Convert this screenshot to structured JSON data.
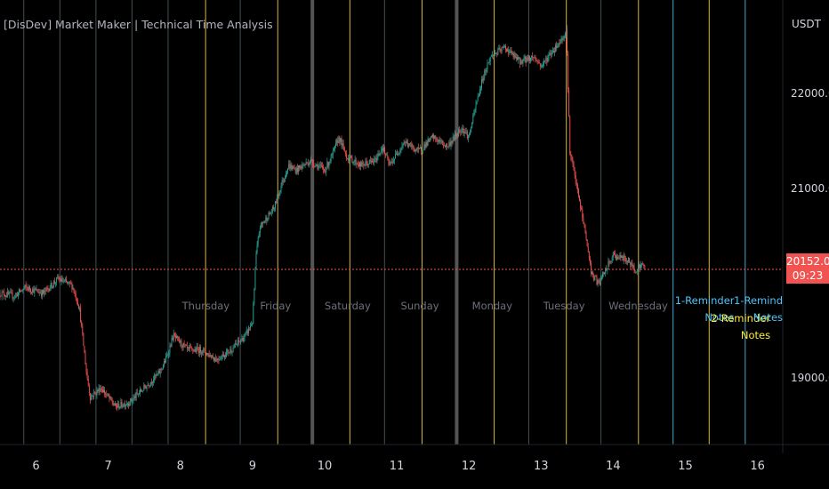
{
  "title": "[DisDev] Market Maker | Technical Time Analysis",
  "unit": "USDT",
  "colors": {
    "background": "#000000",
    "up": "#26a69a",
    "down": "#ef5350",
    "day_line": "#ffd54f",
    "gray_line": "#78909c",
    "thick_line": "#5d5d5d",
    "reminder1": "#4fc3f7",
    "reminder2": "#ffeb3b",
    "price_line": "#f05350"
  },
  "chart_data": {
    "type": "candlestick",
    "x_ticks": [
      "6",
      "7",
      "8",
      "9",
      "10",
      "11",
      "12",
      "13",
      "14",
      "15",
      "16"
    ],
    "y_ticks": [
      "22000.0",
      "21000.0",
      "19000.0"
    ],
    "y_tick_values": [
      22000,
      21000,
      19000
    ],
    "ylim": [
      18300,
      23000
    ],
    "xlim": [
      5.5,
      16.35
    ],
    "last_price_label": "20152.0",
    "last_price": 20152,
    "countdown": "09:23",
    "price_path": [
      [
        5.5,
        19900
      ],
      [
        5.7,
        19870
      ],
      [
        5.85,
        19960
      ],
      [
        6.1,
        19900
      ],
      [
        6.3,
        20050
      ],
      [
        6.5,
        19980
      ],
      [
        6.6,
        19750
      ],
      [
        6.7,
        19050
      ],
      [
        6.75,
        18800
      ],
      [
        6.9,
        18900
      ],
      [
        7.1,
        18700
      ],
      [
        7.3,
        18750
      ],
      [
        7.5,
        18900
      ],
      [
        7.7,
        19050
      ],
      [
        7.8,
        19200
      ],
      [
        7.9,
        19450
      ],
      [
        8.1,
        19300
      ],
      [
        8.3,
        19300
      ],
      [
        8.5,
        19200
      ],
      [
        8.7,
        19300
      ],
      [
        8.9,
        19450
      ],
      [
        9.0,
        19600
      ],
      [
        9.05,
        20300
      ],
      [
        9.1,
        20600
      ],
      [
        9.2,
        20700
      ],
      [
        9.3,
        20800
      ],
      [
        9.4,
        21050
      ],
      [
        9.5,
        21250
      ],
      [
        9.6,
        21200
      ],
      [
        9.8,
        21300
      ],
      [
        10.0,
        21200
      ],
      [
        10.1,
        21350
      ],
      [
        10.2,
        21550
      ],
      [
        10.3,
        21350
      ],
      [
        10.5,
        21250
      ],
      [
        10.7,
        21300
      ],
      [
        10.8,
        21450
      ],
      [
        10.9,
        21250
      ],
      [
        11.1,
        21500
      ],
      [
        11.3,
        21400
      ],
      [
        11.5,
        21550
      ],
      [
        11.7,
        21450
      ],
      [
        11.9,
        21650
      ],
      [
        12.0,
        21550
      ],
      [
        12.1,
        21900
      ],
      [
        12.2,
        22200
      ],
      [
        12.3,
        22400
      ],
      [
        12.5,
        22500
      ],
      [
        12.7,
        22350
      ],
      [
        12.9,
        22400
      ],
      [
        13.0,
        22300
      ],
      [
        13.2,
        22500
      ],
      [
        13.3,
        22600
      ],
      [
        13.35,
        22700
      ],
      [
        13.4,
        21400
      ],
      [
        13.5,
        21000
      ],
      [
        13.6,
        20600
      ],
      [
        13.7,
        20100
      ],
      [
        13.8,
        20000
      ],
      [
        13.9,
        20150
      ],
      [
        14.0,
        20300
      ],
      [
        14.2,
        20250
      ],
      [
        14.3,
        20150
      ],
      [
        14.4,
        20200
      ],
      [
        14.45,
        20152
      ]
    ],
    "day_labels": [
      {
        "text": "Thursday",
        "x": 8.35
      },
      {
        "text": "Friday",
        "x": 9.32
      },
      {
        "text": "Saturday",
        "x": 10.32
      },
      {
        "text": "Sunday",
        "x": 11.32
      },
      {
        "text": "Monday",
        "x": 12.32
      },
      {
        "text": "Tuesday",
        "x": 13.32
      },
      {
        "text": "Wednesday",
        "x": 14.35
      }
    ],
    "vertical_lines": [
      {
        "x": 5.83,
        "kind": "gray"
      },
      {
        "x": 6.33,
        "kind": "gray"
      },
      {
        "x": 6.83,
        "kind": "gray"
      },
      {
        "x": 7.33,
        "kind": "gray"
      },
      {
        "x": 7.83,
        "kind": "gray"
      },
      {
        "x": 8.35,
        "kind": "day"
      },
      {
        "x": 8.83,
        "kind": "gray"
      },
      {
        "x": 9.35,
        "kind": "day"
      },
      {
        "x": 9.83,
        "kind": "thick"
      },
      {
        "x": 10.35,
        "kind": "day"
      },
      {
        "x": 10.83,
        "kind": "gray"
      },
      {
        "x": 11.35,
        "kind": "day"
      },
      {
        "x": 11.83,
        "kind": "thick"
      },
      {
        "x": 12.35,
        "kind": "day"
      },
      {
        "x": 12.83,
        "kind": "gray"
      },
      {
        "x": 13.35,
        "kind": "day"
      },
      {
        "x": 13.83,
        "kind": "gray"
      },
      {
        "x": 14.35,
        "kind": "day"
      },
      {
        "x": 14.83,
        "kind": "reminder1"
      },
      {
        "x": 15.33,
        "kind": "day"
      },
      {
        "x": 15.83,
        "kind": "reminder1"
      }
    ],
    "notes": [
      {
        "line1": "1-Reminder",
        "line2": "Notes",
        "x": 14.83,
        "color_key": "reminder1",
        "top": 329
      },
      {
        "line1": "2-Reminder",
        "line2": "Notes",
        "x": 15.33,
        "color_key": "reminder2",
        "top": 349
      },
      {
        "line1": "1-Remind",
        "line2": "Notes",
        "x": 15.83,
        "color_key": "reminder1",
        "top": 329
      }
    ]
  }
}
